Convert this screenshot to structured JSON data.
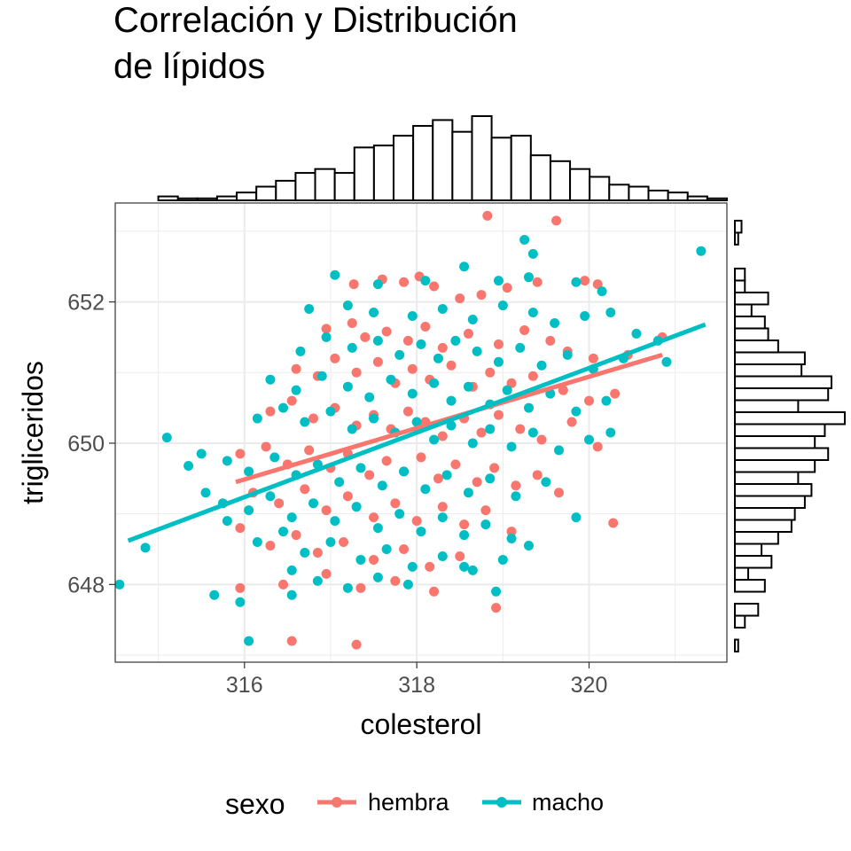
{
  "title": {
    "line1": "Correlación y Distribución",
    "line2": "de lípidos"
  },
  "chart_data": {
    "type": "scatter",
    "title": "Correlación y Distribución de lípidos",
    "xlabel": "colesterol",
    "ylabel": "trigliceridos",
    "xlim": [
      314.5,
      321.6
    ],
    "ylim": [
      646.9,
      653.4
    ],
    "x_ticks": [
      316,
      318,
      320
    ],
    "x_tick_labels": [
      "316",
      "318",
      "320"
    ],
    "y_ticks": [
      648,
      650,
      652
    ],
    "y_tick_labels": [
      "648",
      "650",
      "652"
    ],
    "grid": true,
    "legend": {
      "title": "sexo",
      "position": "bottom",
      "entries": [
        "hembra",
        "macho"
      ]
    },
    "series": [
      {
        "name": "hembra",
        "color": "#F8766D",
        "trend_line": {
          "x": [
            315.9,
            320.85
          ],
          "y": [
            649.45,
            651.25
          ]
        },
        "points": [
          [
            318.82,
            653.22
          ],
          [
            319.62,
            653.15
          ],
          [
            317.27,
            652.25
          ],
          [
            317.6,
            652.32
          ],
          [
            317.85,
            652.28
          ],
          [
            318.03,
            652.36
          ],
          [
            318.2,
            652.22
          ],
          [
            318.5,
            652.05
          ],
          [
            318.75,
            652.1
          ],
          [
            319.05,
            652.2
          ],
          [
            319.4,
            652.28
          ],
          [
            319.95,
            652.3
          ],
          [
            320.1,
            652.25
          ],
          [
            316.95,
            651.62
          ],
          [
            317.25,
            651.7
          ],
          [
            317.4,
            651.5
          ],
          [
            317.65,
            651.58
          ],
          [
            317.9,
            651.45
          ],
          [
            318.1,
            651.65
          ],
          [
            318.3,
            651.35
          ],
          [
            318.6,
            651.55
          ],
          [
            318.95,
            651.4
          ],
          [
            319.25,
            651.6
          ],
          [
            319.55,
            651.45
          ],
          [
            319.75,
            651.3
          ],
          [
            320.05,
            651.2
          ],
          [
            320.45,
            651.25
          ],
          [
            320.85,
            651.5
          ],
          [
            316.6,
            651.05
          ],
          [
            316.85,
            650.95
          ],
          [
            317.05,
            651.2
          ],
          [
            317.3,
            651.0
          ],
          [
            317.55,
            651.15
          ],
          [
            317.75,
            650.85
          ],
          [
            317.95,
            651.05
          ],
          [
            318.15,
            650.9
          ],
          [
            318.4,
            651.1
          ],
          [
            318.65,
            650.8
          ],
          [
            318.85,
            651.0
          ],
          [
            319.1,
            650.85
          ],
          [
            319.35,
            650.95
          ],
          [
            319.7,
            650.75
          ],
          [
            320.0,
            650.6
          ],
          [
            320.3,
            650.7
          ],
          [
            316.3,
            650.45
          ],
          [
            316.55,
            650.6
          ],
          [
            316.8,
            650.35
          ],
          [
            317.05,
            650.5
          ],
          [
            317.3,
            650.25
          ],
          [
            317.5,
            650.4
          ],
          [
            317.7,
            650.2
          ],
          [
            317.9,
            650.45
          ],
          [
            318.1,
            650.3
          ],
          [
            318.3,
            650.1
          ],
          [
            318.55,
            650.35
          ],
          [
            318.75,
            650.15
          ],
          [
            318.95,
            650.4
          ],
          [
            319.2,
            650.2
          ],
          [
            319.45,
            650.05
          ],
          [
            319.8,
            650.3
          ],
          [
            320.1,
            649.95
          ],
          [
            315.95,
            649.85
          ],
          [
            316.25,
            649.95
          ],
          [
            316.5,
            649.7
          ],
          [
            316.75,
            649.9
          ],
          [
            317.0,
            649.65
          ],
          [
            317.2,
            649.85
          ],
          [
            317.45,
            649.55
          ],
          [
            317.65,
            649.75
          ],
          [
            317.85,
            649.6
          ],
          [
            318.05,
            649.8
          ],
          [
            318.25,
            649.5
          ],
          [
            318.45,
            649.7
          ],
          [
            318.7,
            649.45
          ],
          [
            318.9,
            649.65
          ],
          [
            319.15,
            649.4
          ],
          [
            319.4,
            649.55
          ],
          [
            319.65,
            649.3
          ],
          [
            316.1,
            649.3
          ],
          [
            316.4,
            649.15
          ],
          [
            316.7,
            649.35
          ],
          [
            316.95,
            649.05
          ],
          [
            317.2,
            649.25
          ],
          [
            317.5,
            648.95
          ],
          [
            317.75,
            649.15
          ],
          [
            318.0,
            648.9
          ],
          [
            318.3,
            649.1
          ],
          [
            318.55,
            648.85
          ],
          [
            318.8,
            649.05
          ],
          [
            319.1,
            648.75
          ],
          [
            320.28,
            648.87
          ],
          [
            315.95,
            648.8
          ],
          [
            316.3,
            648.55
          ],
          [
            316.6,
            648.7
          ],
          [
            316.85,
            648.45
          ],
          [
            317.15,
            648.6
          ],
          [
            317.5,
            648.35
          ],
          [
            317.85,
            648.5
          ],
          [
            318.15,
            648.25
          ],
          [
            318.5,
            648.4
          ],
          [
            316.45,
            648.0
          ],
          [
            316.95,
            648.15
          ],
          [
            317.35,
            647.95
          ],
          [
            317.75,
            648.05
          ],
          [
            318.2,
            647.9
          ],
          [
            315.95,
            647.95
          ],
          [
            316.55,
            647.2
          ],
          [
            317.3,
            647.15
          ],
          [
            318.92,
            647.67
          ]
        ]
      },
      {
        "name": "macho",
        "color": "#00BFC4",
        "trend_line": {
          "x": [
            314.65,
            321.35
          ],
          "y": [
            648.62,
            651.68
          ]
        },
        "points": [
          [
            321.3,
            652.72
          ],
          [
            319.25,
            652.88
          ],
          [
            319.35,
            652.68
          ],
          [
            318.55,
            652.5
          ],
          [
            317.05,
            652.38
          ],
          [
            317.55,
            652.25
          ],
          [
            318.1,
            652.3
          ],
          [
            318.95,
            652.3
          ],
          [
            319.3,
            652.35
          ],
          [
            319.85,
            652.28
          ],
          [
            320.15,
            652.15
          ],
          [
            316.75,
            651.9
          ],
          [
            317.2,
            651.95
          ],
          [
            317.5,
            651.85
          ],
          [
            317.95,
            651.8
          ],
          [
            318.3,
            651.9
          ],
          [
            318.65,
            651.75
          ],
          [
            319.0,
            651.95
          ],
          [
            319.35,
            651.85
          ],
          [
            319.6,
            651.7
          ],
          [
            319.95,
            651.8
          ],
          [
            320.25,
            651.85
          ],
          [
            320.55,
            651.55
          ],
          [
            320.8,
            651.45
          ],
          [
            320.9,
            651.15
          ],
          [
            316.65,
            651.3
          ],
          [
            316.95,
            651.5
          ],
          [
            317.25,
            651.35
          ],
          [
            317.55,
            651.45
          ],
          [
            317.8,
            651.25
          ],
          [
            318.05,
            651.4
          ],
          [
            318.25,
            651.2
          ],
          [
            318.45,
            651.45
          ],
          [
            318.7,
            651.3
          ],
          [
            318.95,
            651.15
          ],
          [
            319.2,
            651.35
          ],
          [
            319.45,
            651.1
          ],
          [
            319.75,
            651.25
          ],
          [
            320.05,
            651.05
          ],
          [
            320.4,
            651.2
          ],
          [
            316.3,
            650.9
          ],
          [
            316.6,
            650.75
          ],
          [
            316.9,
            650.95
          ],
          [
            317.2,
            650.8
          ],
          [
            317.45,
            650.65
          ],
          [
            317.7,
            650.9
          ],
          [
            317.95,
            650.7
          ],
          [
            318.2,
            650.85
          ],
          [
            318.4,
            650.6
          ],
          [
            318.6,
            650.8
          ],
          [
            318.85,
            650.55
          ],
          [
            319.05,
            650.75
          ],
          [
            319.3,
            650.5
          ],
          [
            319.55,
            650.7
          ],
          [
            319.85,
            650.45
          ],
          [
            320.2,
            650.6
          ],
          [
            316.15,
            650.35
          ],
          [
            316.45,
            650.5
          ],
          [
            316.7,
            650.3
          ],
          [
            317.0,
            650.45
          ],
          [
            317.25,
            650.2
          ],
          [
            317.5,
            650.35
          ],
          [
            317.75,
            650.15
          ],
          [
            318.0,
            650.3
          ],
          [
            318.2,
            650.05
          ],
          [
            318.4,
            650.25
          ],
          [
            318.65,
            650.0
          ],
          [
            318.85,
            650.2
          ],
          [
            319.1,
            649.95
          ],
          [
            319.35,
            650.15
          ],
          [
            319.65,
            649.9
          ],
          [
            320.0,
            650.05
          ],
          [
            320.25,
            650.15
          ],
          [
            315.1,
            650.08
          ],
          [
            315.5,
            649.85
          ],
          [
            315.35,
            649.68
          ],
          [
            315.8,
            649.75
          ],
          [
            316.05,
            649.6
          ],
          [
            316.35,
            649.8
          ],
          [
            316.6,
            649.55
          ],
          [
            316.85,
            649.7
          ],
          [
            317.1,
            649.45
          ],
          [
            317.35,
            649.65
          ],
          [
            317.6,
            649.4
          ],
          [
            317.85,
            649.6
          ],
          [
            318.1,
            649.35
          ],
          [
            318.35,
            649.55
          ],
          [
            318.6,
            649.3
          ],
          [
            318.85,
            649.5
          ],
          [
            319.15,
            649.25
          ],
          [
            319.5,
            649.45
          ],
          [
            315.55,
            649.3
          ],
          [
            315.75,
            649.15
          ],
          [
            316.05,
            649.05
          ],
          [
            316.3,
            649.25
          ],
          [
            316.55,
            648.95
          ],
          [
            316.8,
            649.15
          ],
          [
            317.05,
            648.9
          ],
          [
            317.3,
            649.1
          ],
          [
            317.55,
            648.8
          ],
          [
            317.8,
            649.0
          ],
          [
            318.05,
            648.75
          ],
          [
            318.3,
            648.95
          ],
          [
            318.55,
            648.7
          ],
          [
            318.8,
            648.85
          ],
          [
            319.1,
            648.65
          ],
          [
            319.3,
            648.55
          ],
          [
            319.85,
            648.95
          ],
          [
            315.8,
            648.9
          ],
          [
            316.15,
            648.6
          ],
          [
            316.45,
            648.75
          ],
          [
            316.7,
            648.45
          ],
          [
            317.0,
            648.6
          ],
          [
            317.35,
            648.35
          ],
          [
            317.65,
            648.5
          ],
          [
            317.95,
            648.25
          ],
          [
            318.3,
            648.4
          ],
          [
            318.65,
            648.2
          ],
          [
            319.0,
            648.35
          ],
          [
            316.55,
            648.2
          ],
          [
            316.85,
            648.05
          ],
          [
            317.2,
            647.95
          ],
          [
            317.55,
            648.1
          ],
          [
            317.9,
            648.0
          ],
          [
            318.55,
            648.25
          ],
          [
            314.55,
            648.0
          ],
          [
            314.85,
            648.52
          ],
          [
            315.65,
            647.85
          ],
          [
            315.95,
            647.75
          ],
          [
            316.55,
            647.85
          ],
          [
            316.05,
            647.2
          ],
          [
            318.92,
            647.9
          ]
        ]
      }
    ],
    "marginal_x_histogram": {
      "bin_edges": [
        315.0,
        321.6
      ],
      "counts": [
        2,
        1,
        1,
        2,
        4,
        7,
        10,
        14,
        16,
        14,
        27,
        28,
        33,
        38,
        41,
        35,
        43,
        32,
        33,
        23,
        20,
        16,
        12,
        8,
        7,
        5,
        4,
        2,
        1
      ]
    },
    "marginal_y_histogram": {
      "bin_edges": [
        647.05,
        653.15
      ],
      "counts": [
        1,
        0,
        3,
        7,
        0,
        9,
        4,
        11,
        8,
        13,
        17,
        18,
        21,
        23,
        19,
        24,
        28,
        24,
        27,
        33,
        19,
        28,
        29,
        20,
        21,
        13,
        10,
        9,
        5,
        10,
        3,
        3,
        0,
        0,
        1,
        2
      ]
    }
  }
}
